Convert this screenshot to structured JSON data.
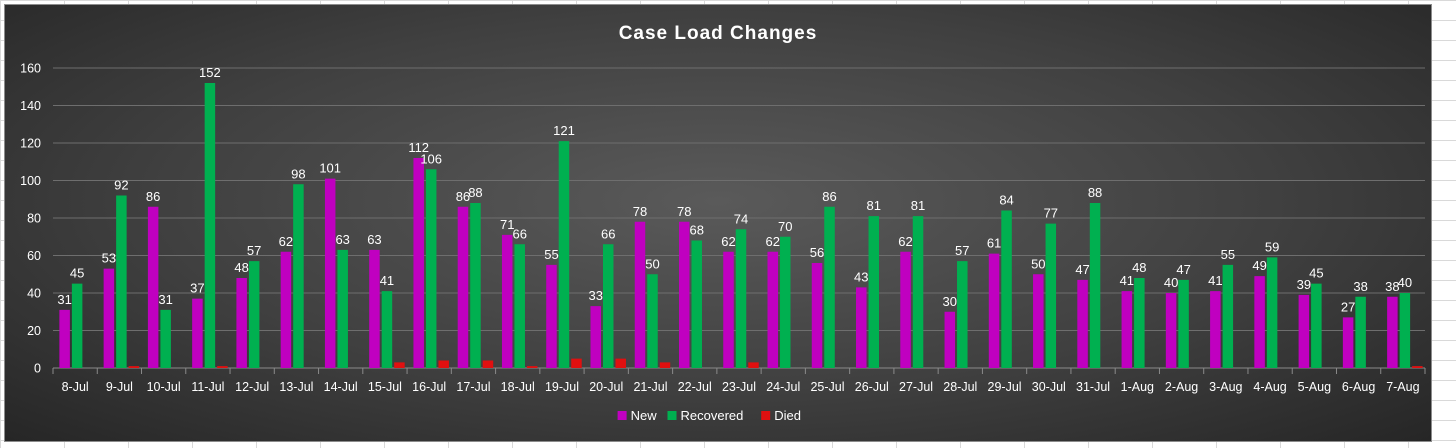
{
  "chart_data": {
    "type": "bar",
    "title": "Case Load Changes",
    "xlabel": "",
    "ylabel": "",
    "ylim": [
      0,
      160
    ],
    "yticks": [
      0,
      20,
      40,
      60,
      80,
      100,
      120,
      140,
      160
    ],
    "grid": true,
    "legend_position": "bottom",
    "categories": [
      "8-Jul",
      "9-Jul",
      "10-Jul",
      "11-Jul",
      "12-Jul",
      "13-Jul",
      "14-Jul",
      "15-Jul",
      "16-Jul",
      "17-Jul",
      "18-Jul",
      "19-Jul",
      "20-Jul",
      "21-Jul",
      "22-Jul",
      "23-Jul",
      "24-Jul",
      "25-Jul",
      "26-Jul",
      "27-Jul",
      "28-Jul",
      "29-Jul",
      "30-Jul",
      "31-Jul",
      "1-Aug",
      "2-Aug",
      "3-Aug",
      "4-Aug",
      "5-Aug",
      "6-Aug",
      "7-Aug"
    ],
    "series": [
      {
        "name": "New",
        "color": "#c000c0",
        "show_labels": true,
        "values": [
          31,
          53,
          86,
          37,
          48,
          62,
          101,
          63,
          112,
          86,
          71,
          55,
          33,
          78,
          78,
          62,
          62,
          56,
          43,
          62,
          30,
          61,
          50,
          47,
          41,
          40,
          41,
          49,
          39,
          27,
          38
        ]
      },
      {
        "name": "Recovered",
        "color": "#00b050",
        "show_labels": true,
        "values": [
          45,
          92,
          31,
          152,
          57,
          98,
          63,
          41,
          106,
          88,
          66,
          121,
          66,
          50,
          68,
          74,
          70,
          86,
          81,
          81,
          57,
          84,
          77,
          88,
          48,
          47,
          55,
          59,
          45,
          38,
          40
        ]
      },
      {
        "name": "Died",
        "color": "#e01010",
        "show_labels": false,
        "values": [
          0,
          1,
          0,
          1,
          0,
          0,
          0,
          3,
          4,
          4,
          1,
          5,
          5,
          3,
          0,
          3,
          0,
          0,
          0,
          0,
          0,
          0,
          0,
          0,
          0,
          0,
          0,
          0,
          0,
          0,
          1
        ]
      }
    ]
  }
}
